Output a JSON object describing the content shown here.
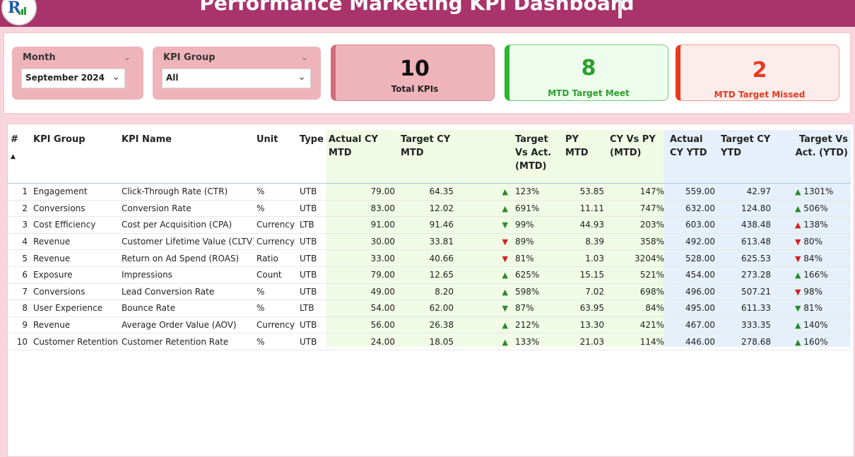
{
  "header": {
    "title": "Performance Marketing KPI Dashboard"
  },
  "filters": {
    "month": {
      "label": "Month",
      "value": "September 2024"
    },
    "kpi_group": {
      "label": "KPI Group",
      "value": "All"
    }
  },
  "cards": [
    {
      "value": "10",
      "caption": "Total KPIs"
    },
    {
      "value": "8",
      "caption": "MTD Target Meet"
    },
    {
      "value": "2",
      "caption": "MTD Target Missed"
    }
  ],
  "table": {
    "headers": {
      "num": "#",
      "group": "KPI Group",
      "name": "KPI Name",
      "unit": "Unit",
      "type": "Type",
      "actual_mtd": "Actual CY MTD",
      "target_mtd": "Target CY MTD",
      "tva_mtd": "Target Vs Act. (MTD)",
      "py_mtd": "PY MTD",
      "cyvspy": "CY Vs PY (MTD)",
      "actual_ytd": "Actual CY YTD",
      "target_ytd": "Target CY YTD",
      "tva_ytd": "Target Vs Act. (YTD)"
    },
    "rows": [
      {
        "n": "1",
        "group": "Engagement",
        "name": "Click-Through Rate (CTR)",
        "unit": "%",
        "type": "UTB",
        "a_mtd": "79.00",
        "t_mtd": "64.35",
        "mtd_ind": "up",
        "mtd_pct": "123%",
        "py": "53.85",
        "cyvspy": "147%",
        "a_ytd": "559.00",
        "t_ytd": "42.97",
        "ytd_ind": "up",
        "ytd_pct": "1301%"
      },
      {
        "n": "2",
        "group": "Conversions",
        "name": "Conversion Rate",
        "unit": "%",
        "type": "UTB",
        "a_mtd": "83.00",
        "t_mtd": "12.02",
        "mtd_ind": "up",
        "mtd_pct": "691%",
        "py": "11.11",
        "cyvspy": "747%",
        "a_ytd": "632.00",
        "t_ytd": "124.80",
        "ytd_ind": "up",
        "ytd_pct": "506%"
      },
      {
        "n": "3",
        "group": "Cost Efficiency",
        "name": "Cost per Acquisition (CPA)",
        "unit": "Currency",
        "type": "LTB",
        "a_mtd": "91.00",
        "t_mtd": "91.46",
        "mtd_ind": "down-green",
        "mtd_pct": "99%",
        "py": "44.93",
        "cyvspy": "203%",
        "a_ytd": "603.00",
        "t_ytd": "438.48",
        "ytd_ind": "up-red",
        "ytd_pct": "138%"
      },
      {
        "n": "4",
        "group": "Revenue",
        "name": "Customer Lifetime Value (CLTV)",
        "unit": "Currency",
        "type": "UTB",
        "a_mtd": "30.00",
        "t_mtd": "33.81",
        "mtd_ind": "down",
        "mtd_pct": "89%",
        "py": "8.39",
        "cyvspy": "358%",
        "a_ytd": "492.00",
        "t_ytd": "613.48",
        "ytd_ind": "down",
        "ytd_pct": "80%"
      },
      {
        "n": "5",
        "group": "Revenue",
        "name": "Return on Ad Spend (ROAS)",
        "unit": "Ratio",
        "type": "UTB",
        "a_mtd": "33.00",
        "t_mtd": "40.66",
        "mtd_ind": "down",
        "mtd_pct": "81%",
        "py": "1.03",
        "cyvspy": "3204%",
        "a_ytd": "528.00",
        "t_ytd": "625.53",
        "ytd_ind": "down",
        "ytd_pct": "84%"
      },
      {
        "n": "6",
        "group": "Exposure",
        "name": "Impressions",
        "unit": "Count",
        "type": "UTB",
        "a_mtd": "79.00",
        "t_mtd": "12.65",
        "mtd_ind": "up",
        "mtd_pct": "625%",
        "py": "15.15",
        "cyvspy": "521%",
        "a_ytd": "454.00",
        "t_ytd": "273.28",
        "ytd_ind": "up",
        "ytd_pct": "166%"
      },
      {
        "n": "7",
        "group": "Conversions",
        "name": "Lead Conversion Rate",
        "unit": "%",
        "type": "UTB",
        "a_mtd": "49.00",
        "t_mtd": "8.20",
        "mtd_ind": "up",
        "mtd_pct": "598%",
        "py": "7.02",
        "cyvspy": "698%",
        "a_ytd": "496.00",
        "t_ytd": "507.21",
        "ytd_ind": "down",
        "ytd_pct": "98%"
      },
      {
        "n": "8",
        "group": "User Experience",
        "name": "Bounce Rate",
        "unit": "%",
        "type": "LTB",
        "a_mtd": "54.00",
        "t_mtd": "62.00",
        "mtd_ind": "down-green",
        "mtd_pct": "87%",
        "py": "63.95",
        "cyvspy": "84%",
        "a_ytd": "495.00",
        "t_ytd": "611.33",
        "ytd_ind": "down-green",
        "ytd_pct": "81%"
      },
      {
        "n": "9",
        "group": "Revenue",
        "name": "Average Order Value (AOV)",
        "unit": "Currency",
        "type": "UTB",
        "a_mtd": "56.00",
        "t_mtd": "26.38",
        "mtd_ind": "up",
        "mtd_pct": "212%",
        "py": "13.30",
        "cyvspy": "421%",
        "a_ytd": "467.00",
        "t_ytd": "333.35",
        "ytd_ind": "up",
        "ytd_pct": "140%"
      },
      {
        "n": "10",
        "group": "Customer Retention",
        "name": "Customer Retention Rate",
        "unit": "%",
        "type": "UTB",
        "a_mtd": "24.00",
        "t_mtd": "18.05",
        "mtd_ind": "up",
        "mtd_pct": "133%",
        "py": "21.03",
        "cyvspy": "114%",
        "a_ytd": "446.00",
        "t_ytd": "278.68",
        "ytd_ind": "up",
        "ytd_pct": "160%"
      }
    ]
  },
  "colors": {
    "header": "#a8346b",
    "good": "#2a8a2a",
    "bad": "#d62020",
    "background": "#f9d6dd"
  }
}
